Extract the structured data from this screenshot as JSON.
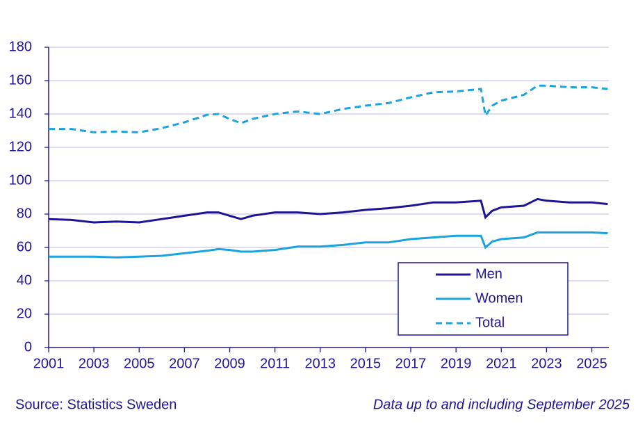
{
  "chart_data": {
    "type": "line",
    "x": [
      2001,
      2002,
      2003,
      2004,
      2005,
      2006,
      2007,
      2008,
      2008.5,
      2009,
      2009.5,
      2010,
      2011,
      2012,
      2013,
      2014,
      2015,
      2016,
      2017,
      2018,
      2019,
      2020.1,
      2020.3,
      2020.6,
      2021,
      2022,
      2022.6,
      2023,
      2024,
      2025,
      2025.7
    ],
    "series": [
      {
        "name": "Men",
        "color": "#1e1595",
        "dash": "solid",
        "values": [
          77,
          76.5,
          75,
          75.5,
          75,
          77,
          79,
          81,
          81,
          79,
          77,
          79,
          81,
          81,
          80,
          81,
          82.5,
          83.5,
          85,
          87,
          87,
          88,
          78,
          82,
          84,
          85,
          89,
          88,
          87,
          87,
          86
        ]
      },
      {
        "name": "Women",
        "color": "#1aa3dd",
        "dash": "solid",
        "values": [
          54.5,
          54.5,
          54.5,
          54,
          54.5,
          55,
          56.5,
          58,
          59,
          58.5,
          57.5,
          57.5,
          58.5,
          60.5,
          60.5,
          61.5,
          63,
          63,
          65,
          66,
          67,
          67,
          60,
          63.5,
          65,
          66,
          69,
          69,
          69,
          69,
          68.5
        ]
      },
      {
        "name": "Total",
        "color": "#1aa3dd",
        "dash": "dashed",
        "values": [
          131,
          131,
          129,
          129.5,
          129,
          131.5,
          135,
          139.5,
          140,
          137,
          134.5,
          137,
          140,
          141.5,
          140,
          143,
          145,
          146.5,
          150,
          153,
          153.5,
          155,
          139,
          145,
          148,
          151.5,
          157,
          157,
          156,
          156,
          155
        ]
      }
    ],
    "xlim": [
      2001,
      2025.75
    ],
    "xticks": [
      2001,
      2003,
      2005,
      2007,
      2009,
      2011,
      2013,
      2015,
      2017,
      2019,
      2021,
      2023,
      2025
    ],
    "ylim": [
      0,
      180
    ],
    "yticks": [
      0,
      20,
      40,
      60,
      80,
      100,
      120,
      140,
      160,
      180
    ],
    "grid": true,
    "legend_position": "lower right",
    "source": "Source: Statistics Sweden",
    "note": "Data up to and including September 2025"
  }
}
